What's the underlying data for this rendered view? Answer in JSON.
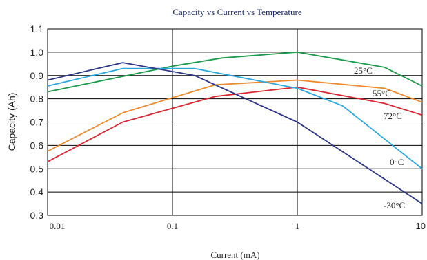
{
  "chart_data": {
    "type": "line",
    "title": "Capacity vs Current vs Temperature",
    "xlabel": "Current (mA)",
    "ylabel": "Capacity (Ah)",
    "xscale": "log",
    "xlim": [
      0.01,
      10
    ],
    "ylim": [
      0.3,
      1.1
    ],
    "xticks": [
      0.01,
      0.1,
      1,
      10
    ],
    "xtick_labels": [
      "0.01",
      "0.1",
      "1",
      "10"
    ],
    "yticks": [
      0.3,
      0.4,
      0.5,
      0.6,
      0.7,
      0.8,
      0.9,
      1.0,
      1.1
    ],
    "ytick_labels": [
      "0.3",
      "0.4",
      "0.5",
      "0.6",
      "0.7",
      "0.8",
      "0.9",
      "1.0",
      "1.1"
    ],
    "grid": true,
    "series": [
      {
        "name": "25°C",
        "color": "#1a9a4a",
        "x": [
          0.01,
          0.1,
          0.25,
          1,
          5,
          10
        ],
        "y": [
          0.83,
          0.94,
          0.975,
          1.0,
          0.935,
          0.855
        ]
      },
      {
        "name": "55°C",
        "color": "#ef8a2c",
        "x": [
          0.01,
          0.04,
          0.22,
          1,
          5,
          10
        ],
        "y": [
          0.575,
          0.74,
          0.86,
          0.88,
          0.845,
          0.785
        ]
      },
      {
        "name": "72°C",
        "color": "#d92732",
        "x": [
          0.01,
          0.04,
          0.22,
          1,
          5,
          10
        ],
        "y": [
          0.53,
          0.7,
          0.81,
          0.85,
          0.78,
          0.73
        ]
      },
      {
        "name": "0°C",
        "color": "#29a8e0",
        "x": [
          0.01,
          0.04,
          0.15,
          1,
          2.3,
          10
        ],
        "y": [
          0.855,
          0.93,
          0.93,
          0.845,
          0.77,
          0.5
        ]
      },
      {
        "name": "-30°C",
        "color": "#2c3585",
        "x": [
          0.01,
          0.04,
          0.15,
          1,
          10
        ],
        "y": [
          0.88,
          0.955,
          0.9,
          0.7,
          0.35
        ]
      }
    ]
  }
}
